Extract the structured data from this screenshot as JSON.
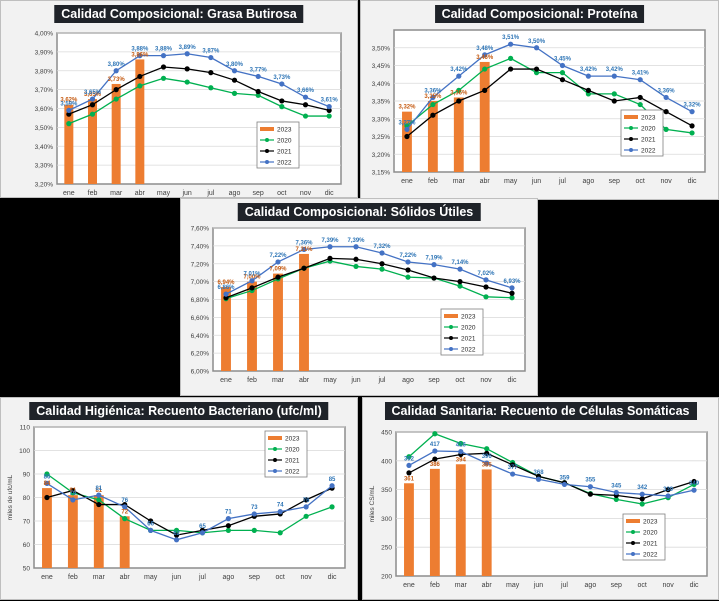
{
  "chart_data": [
    {
      "id": "grasa",
      "type": "bar",
      "title": "Calidad Composicional: Grasa Butirosa",
      "xlabel": "",
      "ylabel": "",
      "categories": [
        "ene",
        "feb",
        "mar",
        "abr",
        "may",
        "jun",
        "jul",
        "ago",
        "sep",
        "oct",
        "nov",
        "dic"
      ],
      "ylim": [
        3.2,
        4.0
      ],
      "yticks": [
        3.2,
        3.3,
        3.4,
        3.5,
        3.6,
        3.7,
        3.8,
        3.9,
        4.0
      ],
      "ytick_labels": [
        "3,20%",
        "3,30%",
        "3,40%",
        "3,50%",
        "3,60%",
        "3,70%",
        "3,80%",
        "3,90%",
        "4,00%"
      ],
      "grid": true,
      "legend_position": "bottom-right",
      "series": [
        {
          "name": "2023",
          "kind": "bar",
          "color": "#ed7d31",
          "values": [
            3.62,
            3.65,
            3.73,
            3.86
          ],
          "labels": [
            "3,62%",
            "3,65%",
            "3,73%",
            "3,86%"
          ]
        },
        {
          "name": "2020",
          "kind": "line",
          "color": "#00b050",
          "values": [
            3.52,
            3.57,
            3.65,
            3.72,
            3.76,
            3.74,
            3.71,
            3.68,
            3.67,
            3.61,
            3.56,
            3.56
          ]
        },
        {
          "name": "2021",
          "kind": "line",
          "color": "#000000",
          "values": [
            3.57,
            3.62,
            3.7,
            3.77,
            3.82,
            3.81,
            3.79,
            3.75,
            3.69,
            3.64,
            3.62,
            3.59
          ]
        },
        {
          "name": "2022",
          "kind": "line",
          "color": "#4472c4",
          "values": [
            3.59,
            3.65,
            3.8,
            3.88,
            3.88,
            3.89,
            3.87,
            3.8,
            3.77,
            3.73,
            3.66,
            3.61
          ],
          "labels": [
            "3,59%",
            "3,65%",
            "3,80%",
            "3,88%",
            "3,88%",
            "3,89%",
            "3,87%",
            "3,80%",
            "3,77%",
            "3,73%",
            "3,66%",
            "3,61%"
          ]
        }
      ]
    },
    {
      "id": "proteina",
      "type": "bar",
      "title": "Calidad Composicional: Proteína",
      "xlabel": "",
      "ylabel": "",
      "categories": [
        "ene",
        "feb",
        "mar",
        "abr",
        "may",
        "jun",
        "jul",
        "ago",
        "sep",
        "oct",
        "nov",
        "dic"
      ],
      "ylim": [
        3.15,
        3.55
      ],
      "yticks": [
        3.15,
        3.2,
        3.25,
        3.3,
        3.35,
        3.4,
        3.45,
        3.5
      ],
      "ytick_labels": [
        "3,15%",
        "3,20%",
        "3,25%",
        "3,30%",
        "3,35%",
        "3,40%",
        "3,45%",
        "3,50%"
      ],
      "grid": true,
      "legend_position": "bottom-right",
      "series": [
        {
          "name": "2023",
          "kind": "bar",
          "color": "#ed7d31",
          "values": [
            3.32,
            3.35,
            3.36,
            3.46
          ],
          "labels": [
            "3,32%",
            "3,35%",
            "3,36%",
            "3,46%"
          ]
        },
        {
          "name": "2020",
          "kind": "line",
          "color": "#00b050",
          "values": [
            3.28,
            3.34,
            3.38,
            3.44,
            3.47,
            3.43,
            3.43,
            3.37,
            3.37,
            3.34,
            3.27,
            3.26
          ]
        },
        {
          "name": "2021",
          "kind": "line",
          "color": "#000000",
          "values": [
            3.25,
            3.31,
            3.35,
            3.38,
            3.44,
            3.44,
            3.41,
            3.38,
            3.35,
            3.36,
            3.32,
            3.28
          ]
        },
        {
          "name": "2022",
          "kind": "line",
          "color": "#4472c4",
          "values": [
            3.27,
            3.36,
            3.42,
            3.48,
            3.51,
            3.5,
            3.45,
            3.42,
            3.42,
            3.41,
            3.36,
            3.32
          ],
          "labels": [
            "3,27%",
            "3,36%",
            "3,42%",
            "3,48%",
            "3,51%",
            "3,50%",
            "3,45%",
            "3,42%",
            "3,42%",
            "3,41%",
            "3,36%",
            "3,32%"
          ]
        }
      ]
    },
    {
      "id": "solidos",
      "type": "bar",
      "title": "Calidad Composicional: Sólidos Útiles",
      "xlabel": "",
      "ylabel": "",
      "categories": [
        "ene",
        "feb",
        "mar",
        "abr",
        "may",
        "jun",
        "jul",
        "ago",
        "sep",
        "oct",
        "nov",
        "dic"
      ],
      "ylim": [
        6.0,
        7.6
      ],
      "yticks": [
        6.0,
        6.2,
        6.4,
        6.6,
        6.8,
        7.0,
        7.2,
        7.4,
        7.6
      ],
      "ytick_labels": [
        "6,00%",
        "6,20%",
        "6,40%",
        "6,60%",
        "6,80%",
        "7,00%",
        "7,20%",
        "7,40%",
        "7,60%"
      ],
      "grid": true,
      "legend_position": "bottom-right",
      "series": [
        {
          "name": "2023",
          "kind": "bar",
          "color": "#ed7d31",
          "values": [
            6.94,
            7.0,
            7.09,
            7.31
          ],
          "labels": [
            "6,94%",
            "7,00%",
            "7,09%",
            "7,31%"
          ]
        },
        {
          "name": "2020",
          "kind": "line",
          "color": "#00b050",
          "values": [
            6.81,
            6.9,
            7.03,
            7.15,
            7.23,
            7.17,
            7.14,
            7.05,
            7.04,
            6.95,
            6.83,
            6.82
          ]
        },
        {
          "name": "2021",
          "kind": "line",
          "color": "#000000",
          "values": [
            6.82,
            6.93,
            7.05,
            7.15,
            7.26,
            7.25,
            7.2,
            7.13,
            7.04,
            7.0,
            6.94,
            6.87
          ]
        },
        {
          "name": "2022",
          "kind": "line",
          "color": "#4472c4",
          "values": [
            6.86,
            7.01,
            7.22,
            7.36,
            7.39,
            7.39,
            7.32,
            7.22,
            7.19,
            7.14,
            7.02,
            6.93
          ],
          "labels": [
            "6,86%",
            "7,01%",
            "7,22%",
            "7,36%",
            "7,39%",
            "7,39%",
            "7,32%",
            "7,22%",
            "7,19%",
            "7,14%",
            "7,02%",
            "6,93%"
          ]
        }
      ]
    },
    {
      "id": "bacteriano",
      "type": "bar",
      "title": "Calidad Higiénica: Recuento Bacteriano (ufc/ml)",
      "xlabel": "",
      "ylabel": "miles de ufc/mL",
      "categories": [
        "ene",
        "feb",
        "mar",
        "abr",
        "may",
        "jun",
        "jul",
        "ago",
        "sep",
        "oct",
        "nov",
        "dic"
      ],
      "ylim": [
        50,
        110
      ],
      "yticks": [
        50,
        60,
        70,
        80,
        90,
        100,
        110
      ],
      "ytick_labels": [
        "50",
        "60",
        "70",
        "80",
        "90",
        "100",
        "110"
      ],
      "grid": true,
      "legend_position": "top-right",
      "series": [
        {
          "name": "2023",
          "kind": "bar",
          "color": "#ed7d31",
          "values": [
            84,
            81,
            81,
            72
          ],
          "labels": [
            "84",
            "81",
            "81",
            "72"
          ]
        },
        {
          "name": "2020",
          "kind": "line",
          "color": "#00b050",
          "values": [
            90,
            82,
            79,
            71,
            66,
            66,
            65,
            66,
            66,
            65,
            72,
            76
          ]
        },
        {
          "name": "2021",
          "kind": "line",
          "color": "#000000",
          "values": [
            80,
            83,
            77,
            77,
            70,
            64,
            66,
            68,
            72,
            73,
            79,
            84
          ]
        },
        {
          "name": "2022",
          "kind": "line",
          "color": "#4472c4",
          "values": [
            86,
            79,
            81,
            76,
            66,
            62,
            65,
            71,
            73,
            74,
            76,
            85
          ],
          "labels": [
            "86",
            "79",
            "81",
            "76",
            "66",
            "62",
            "65",
            "71",
            "73",
            "74",
            "76",
            "85"
          ]
        }
      ]
    },
    {
      "id": "somaticas",
      "type": "bar",
      "title": "Calidad Sanitaria: Recuento de Células Somáticas",
      "xlabel": "",
      "ylabel": "miles CS/mL",
      "categories": [
        "ene",
        "feb",
        "mar",
        "abr",
        "may",
        "jun",
        "jul",
        "ago",
        "sep",
        "oct",
        "nov",
        "dic"
      ],
      "ylim": [
        200,
        450
      ],
      "yticks": [
        200,
        250,
        300,
        350,
        400,
        450
      ],
      "ytick_labels": [
        "200",
        "250",
        "300",
        "350",
        "400",
        "450"
      ],
      "grid": true,
      "legend_position": "bottom-right",
      "series": [
        {
          "name": "2023",
          "kind": "bar",
          "color": "#ed7d31",
          "values": [
            361,
            386,
            394,
            385
          ],
          "labels": [
            "361",
            "386",
            "394",
            "385"
          ]
        },
        {
          "name": "2020",
          "kind": "line",
          "color": "#00b050",
          "values": [
            407,
            447,
            430,
            421,
            397,
            373,
            362,
            343,
            333,
            325,
            336,
            359
          ]
        },
        {
          "name": "2021",
          "kind": "line",
          "color": "#000000",
          "values": [
            379,
            403,
            411,
            413,
            393,
            373,
            362,
            342,
            340,
            334,
            350,
            364
          ]
        },
        {
          "name": "2022",
          "kind": "line",
          "color": "#4472c4",
          "values": [
            392,
            417,
            416,
            396,
            377,
            368,
            359,
            355,
            345,
            342,
            339,
            349
          ],
          "labels": [
            "392",
            "417",
            "416",
            "396",
            "377",
            "368",
            "359",
            "355",
            "345",
            "342",
            "339",
            "349"
          ]
        }
      ]
    }
  ]
}
